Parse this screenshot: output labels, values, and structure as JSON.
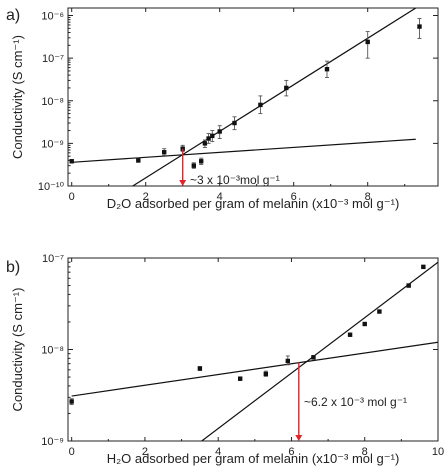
{
  "chart_data": [
    {
      "type": "scatter",
      "panel_label": "a)",
      "xlabel": "D₂O adsorbed per gram of melanin (x10⁻³ mol g⁻¹)",
      "ylabel": "Conductivity (S cm⁻¹)",
      "x_scale": "linear",
      "y_scale": "log",
      "xlim": [
        -0.1,
        9.9
      ],
      "ylim": [
        1e-10,
        1.5e-06
      ],
      "x_ticks": [
        0,
        2,
        4,
        6,
        8
      ],
      "x_tick_labels": [
        "0",
        "2",
        "4",
        "6",
        "8"
      ],
      "y_ticks": [
        1e-10,
        1e-09,
        1e-08,
        1e-07,
        1e-06
      ],
      "y_tick_labels": [
        "10⁻¹⁰",
        "10⁻⁹",
        "10⁻⁸",
        "10⁻⁷",
        "10⁻⁶"
      ],
      "grid": false,
      "series": [
        {
          "x": [
            0.0,
            1.8,
            2.5,
            3.0,
            3.3,
            3.5,
            3.6,
            3.7,
            3.8,
            4.0,
            4.4,
            5.1,
            5.8,
            6.9,
            8.0,
            9.4
          ],
          "y": [
            3.8e-10,
            4e-10,
            6.2e-10,
            7.5e-10,
            3e-10,
            3.8e-10,
            1e-09,
            1.3e-09,
            1.5e-09,
            1.9e-09,
            3e-09,
            8e-09,
            2e-08,
            5.5e-08,
            2.4e-07,
            5.5e-07
          ],
          "err_low": [
            3.6e-10,
            3.6e-10,
            5.2e-10,
            6.5e-10,
            2.6e-10,
            3.2e-10,
            8e-10,
            1e-09,
            1.1e-09,
            1.3e-09,
            2.1e-09,
            5e-09,
            1.3e-08,
            3.5e-08,
            1e-07,
            2.9e-07
          ],
          "err_high": [
            4.2e-10,
            4.5e-10,
            7.5e-10,
            9e-10,
            3.5e-10,
            4.5e-10,
            1.2e-09,
            1.7e-09,
            2e-09,
            2.6e-09,
            4.2e-09,
            1.3e-08,
            3e-08,
            8.5e-08,
            4.2e-07,
            8.5e-07
          ]
        }
      ],
      "fit_lines": [
        {
          "x": [
            0,
            9.3
          ],
          "y": [
            3.6e-10,
            1.25e-09
          ]
        },
        {
          "x": [
            1.65,
            9.3
          ],
          "y": [
            1e-10,
            1.5e-06
          ]
        }
      ],
      "annotation": {
        "text": "~3 x 10⁻³mol g⁻¹",
        "arrow_x": 3.0,
        "arrow_y_from": 7.5e-10,
        "arrow_y_to": 1e-10,
        "color": "#e0242b"
      }
    },
    {
      "type": "scatter",
      "panel_label": "b)",
      "xlabel": "H₂O adsorbed per gram of melanin (x10⁻³ mol g⁻¹)",
      "ylabel": "Conductivity (S cm⁻¹)",
      "x_scale": "linear",
      "y_scale": "log",
      "xlim": [
        -0.1,
        10.0
      ],
      "ylim": [
        1e-09,
        1e-07
      ],
      "x_ticks": [
        0,
        2,
        4,
        6,
        8,
        10
      ],
      "x_tick_labels": [
        "0",
        "2",
        "4",
        "6",
        "8",
        "10"
      ],
      "y_ticks": [
        1e-09,
        1e-08,
        1e-07
      ],
      "y_tick_labels": [
        "10⁻⁹",
        "10⁻⁸",
        "10⁻⁷"
      ],
      "grid": false,
      "series": [
        {
          "x": [
            0.0,
            3.5,
            4.6,
            5.3,
            5.9,
            6.6,
            7.6,
            8.0,
            8.4,
            9.2,
            9.6
          ],
          "y": [
            2.7e-09,
            6.2e-09,
            4.8e-09,
            5.4e-09,
            7.5e-09,
            8.2e-09,
            1.45e-08,
            1.9e-08,
            2.6e-08,
            5e-08,
            8e-08
          ],
          "err_low": [
            2.5e-09,
            5.9e-09,
            4.6e-09,
            5.1e-09,
            6.8e-09,
            7.9e-09,
            1.4e-08,
            1.85e-08,
            2.5e-08,
            4.8e-08,
            7.7e-08
          ],
          "err_high": [
            2.9e-09,
            6.5e-09,
            5e-09,
            5.8e-09,
            8.5e-09,
            8.6e-09,
            1.5e-08,
            1.95e-08,
            2.7e-08,
            5.2e-08,
            8.3e-08
          ]
        }
      ],
      "fit_lines": [
        {
          "x": [
            0,
            10.0
          ],
          "y": [
            3.1e-09,
            1.2e-08
          ]
        },
        {
          "x": [
            3.55,
            10.0
          ],
          "y": [
            1e-09,
            9e-08
          ]
        }
      ],
      "annotation": {
        "text": "~6.2 x 10⁻³ mol g⁻¹",
        "arrow_x": 6.2,
        "arrow_y_from": 7.2e-09,
        "arrow_y_to": 1e-09,
        "color": "#e0242b"
      }
    }
  ]
}
